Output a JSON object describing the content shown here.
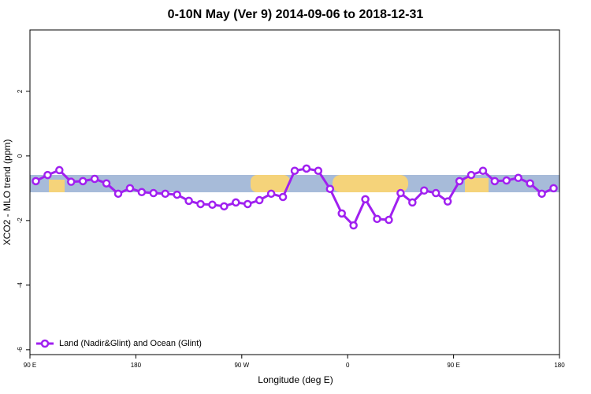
{
  "chart_data": {
    "type": "line",
    "title": "0-10N May (Ver 9)   2014-09-06 to 2018-12-31",
    "x_label": "Longitude (deg E)",
    "y_label": "XCO2 - MLO trend (ppm)",
    "x": [
      95,
      105,
      115,
      125,
      135,
      145,
      155,
      165,
      175,
      185,
      195,
      205,
      215,
      225,
      235,
      245,
      255,
      265,
      275,
      285,
      295,
      305,
      315,
      325,
      335,
      345,
      355,
      365,
      375,
      385,
      395,
      405,
      415,
      425,
      435,
      445,
      455,
      465,
      475,
      485,
      495,
      505,
      515,
      525,
      535
    ],
    "series": [
      {
        "name": "Land (Nadir&Glint) and Ocean (Glint)",
        "color": "#a020f0",
        "values": [
          -0.78,
          -0.59,
          -0.44,
          -0.8,
          -0.78,
          -0.71,
          -0.85,
          -1.17,
          -1.0,
          -1.12,
          -1.15,
          -1.17,
          -1.2,
          -1.39,
          -1.49,
          -1.51,
          -1.56,
          -1.44,
          -1.49,
          -1.37,
          -1.17,
          -1.27,
          -0.46,
          -0.39,
          -0.46,
          -1.02,
          -1.78,
          -2.15,
          -1.34,
          -1.95,
          -1.98,
          -1.15,
          -1.44,
          -1.07,
          -1.15,
          -1.41,
          -0.78,
          -0.59,
          -0.46,
          -0.78,
          -0.76,
          -0.68,
          -0.85,
          -1.17,
          -1.0
        ]
      }
    ],
    "xlim": [
      90,
      540
    ],
    "xticks": [
      {
        "value": 90,
        "label": "90 E"
      },
      {
        "value": 180,
        "label": "180"
      },
      {
        "value": 270,
        "label": "90 W"
      },
      {
        "value": 360,
        "label": "0"
      },
      {
        "value": 450,
        "label": "90 E"
      },
      {
        "value": 540,
        "label": "180"
      }
    ],
    "ylim": [
      -6.15,
      3.9
    ],
    "yticks": [
      2,
      0,
      -2,
      -4,
      -6
    ],
    "legend": "bottom-left"
  }
}
